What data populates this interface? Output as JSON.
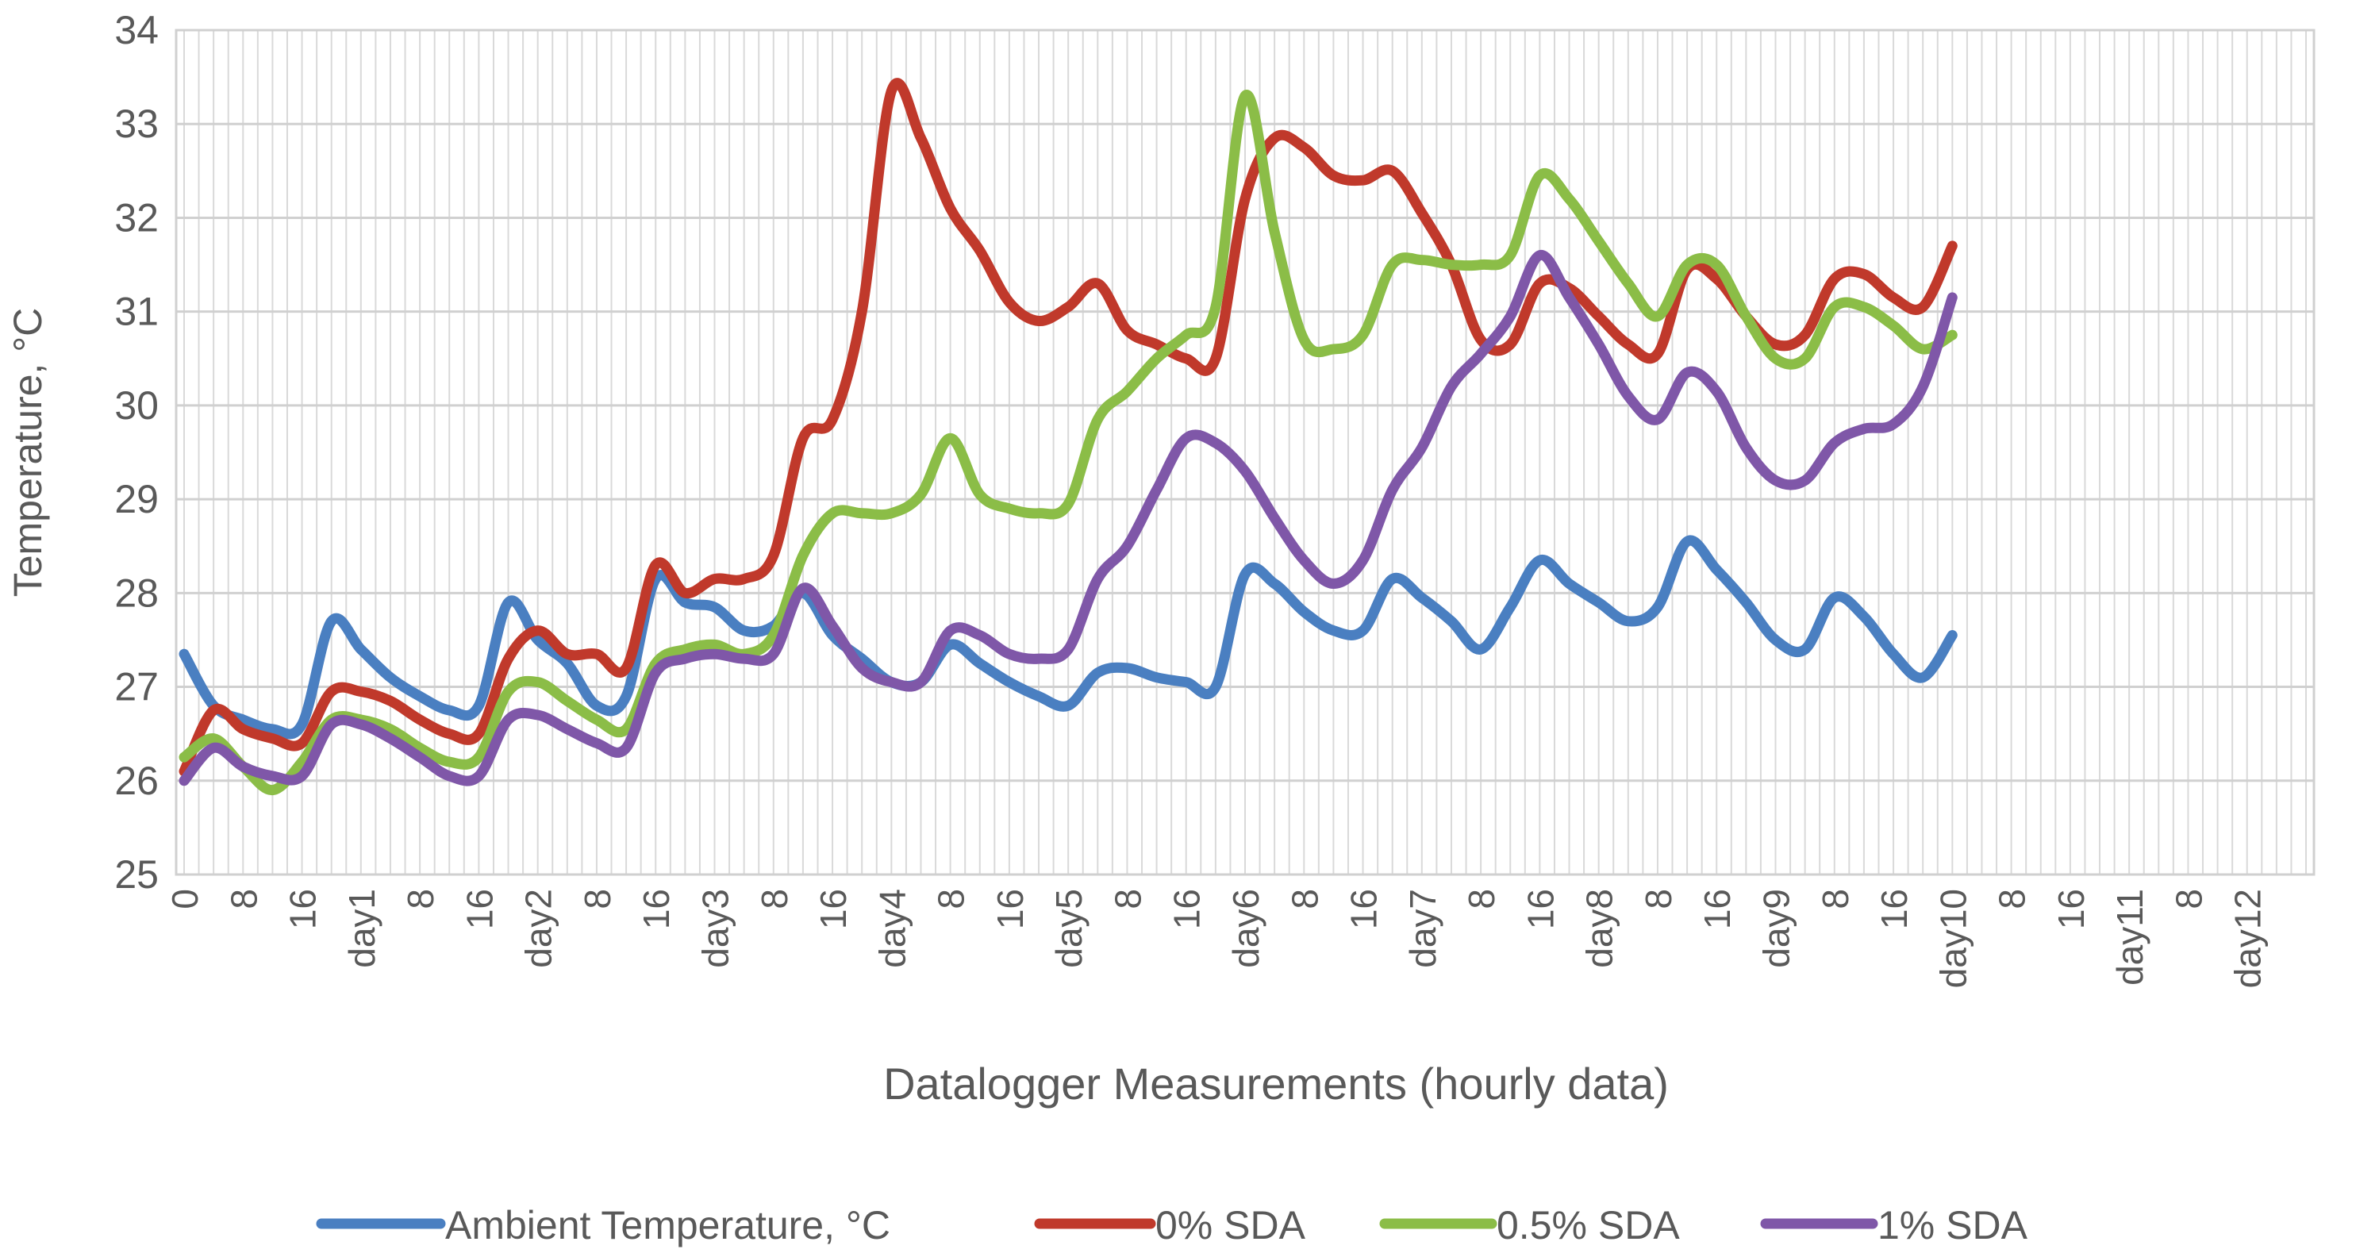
{
  "chart_data": {
    "type": "line",
    "title": "",
    "xlabel": "Datalogger Measurements (hourly data)",
    "ylabel": "Temperature, °C",
    "ylim": [
      25,
      34
    ],
    "yticks": [
      "25",
      "26",
      "27",
      "28",
      "29",
      "30",
      "31",
      "32",
      "33",
      "34"
    ],
    "grid": true,
    "hours_per_point": 4,
    "x_tick_labels": [
      "0",
      "8",
      "16",
      "day1",
      "8",
      "16",
      "day2",
      "8",
      "16",
      "day3",
      "8",
      "16",
      "day4",
      "8",
      "16",
      "day5",
      "8",
      "16",
      "day6",
      "8",
      "16",
      "day7",
      "8",
      "16",
      "day8",
      "8",
      "16",
      "day9",
      "8",
      "16",
      "day10",
      "8",
      "16",
      "day11",
      "8",
      "day12"
    ],
    "legend_position": "bottom",
    "series": [
      {
        "name": "Ambient Temperature, °C",
        "color": "#4a7fc1",
        "values": [
          27.35,
          26.8,
          26.65,
          26.55,
          26.6,
          27.7,
          27.4,
          27.1,
          26.9,
          26.75,
          26.8,
          27.9,
          27.5,
          27.25,
          26.8,
          26.9,
          28.15,
          27.9,
          27.85,
          27.6,
          27.65,
          28.0,
          27.55,
          27.3,
          27.05,
          27.05,
          27.45,
          27.25,
          27.05,
          26.9,
          26.8,
          27.15,
          27.2,
          27.1,
          27.05,
          27.0,
          28.2,
          28.1,
          27.8,
          27.6,
          27.6,
          28.15,
          27.95,
          27.7,
          27.4,
          27.85,
          28.35,
          28.1,
          27.9,
          27.7,
          27.85,
          28.55,
          28.25,
          27.9,
          27.5,
          27.4,
          27.95,
          27.75,
          27.35,
          27.1,
          27.55
        ]
      },
      {
        "name": "0% SDA",
        "color": "#c0392b",
        "values": [
          26.1,
          26.75,
          26.55,
          26.45,
          26.4,
          26.95,
          26.95,
          26.85,
          26.65,
          26.5,
          26.5,
          27.3,
          27.6,
          27.35,
          27.35,
          27.2,
          28.3,
          28.0,
          28.15,
          28.15,
          28.4,
          29.65,
          29.85,
          31.0,
          33.35,
          32.85,
          32.1,
          31.65,
          31.1,
          30.9,
          31.05,
          31.3,
          30.8,
          30.65,
          30.5,
          30.5,
          32.2,
          32.85,
          32.75,
          32.45,
          32.4,
          32.5,
          32.05,
          31.5,
          30.7,
          30.65,
          31.3,
          31.25,
          30.95,
          30.65,
          30.55,
          31.45,
          31.35,
          30.95,
          30.65,
          30.75,
          31.35,
          31.4,
          31.15,
          31.05,
          31.7
        ]
      },
      {
        "name": "0.5% SDA",
        "color": "#8bbd47",
        "values": [
          26.25,
          26.45,
          26.15,
          25.9,
          26.2,
          26.65,
          26.65,
          26.55,
          26.35,
          26.2,
          26.25,
          26.95,
          27.05,
          26.85,
          26.65,
          26.55,
          27.25,
          27.4,
          27.45,
          27.35,
          27.55,
          28.4,
          28.85,
          28.85,
          28.85,
          29.05,
          29.65,
          29.05,
          28.9,
          28.85,
          28.95,
          29.85,
          30.15,
          30.5,
          30.75,
          31.05,
          33.3,
          31.85,
          30.7,
          30.6,
          30.75,
          31.5,
          31.55,
          31.5,
          31.5,
          31.6,
          32.45,
          32.2,
          31.75,
          31.3,
          30.95,
          31.5,
          31.5,
          30.95,
          30.5,
          30.5,
          31.05,
          31.05,
          30.85,
          30.6,
          30.75
        ]
      },
      {
        "name": "1% SDA",
        "color": "#7f57a8",
        "values": [
          26.0,
          26.35,
          26.15,
          26.05,
          26.05,
          26.6,
          26.6,
          26.45,
          26.25,
          26.05,
          26.05,
          26.65,
          26.7,
          26.55,
          26.4,
          26.35,
          27.15,
          27.3,
          27.35,
          27.3,
          27.35,
          28.05,
          27.65,
          27.2,
          27.05,
          27.05,
          27.6,
          27.55,
          27.35,
          27.3,
          27.4,
          28.15,
          28.5,
          29.1,
          29.65,
          29.6,
          29.3,
          28.8,
          28.35,
          28.1,
          28.35,
          29.1,
          29.55,
          30.2,
          30.55,
          30.95,
          31.6,
          31.15,
          30.65,
          30.1,
          29.85,
          30.35,
          30.15,
          29.55,
          29.2,
          29.2,
          29.6,
          29.75,
          29.8,
          30.2,
          31.15
        ]
      }
    ]
  }
}
